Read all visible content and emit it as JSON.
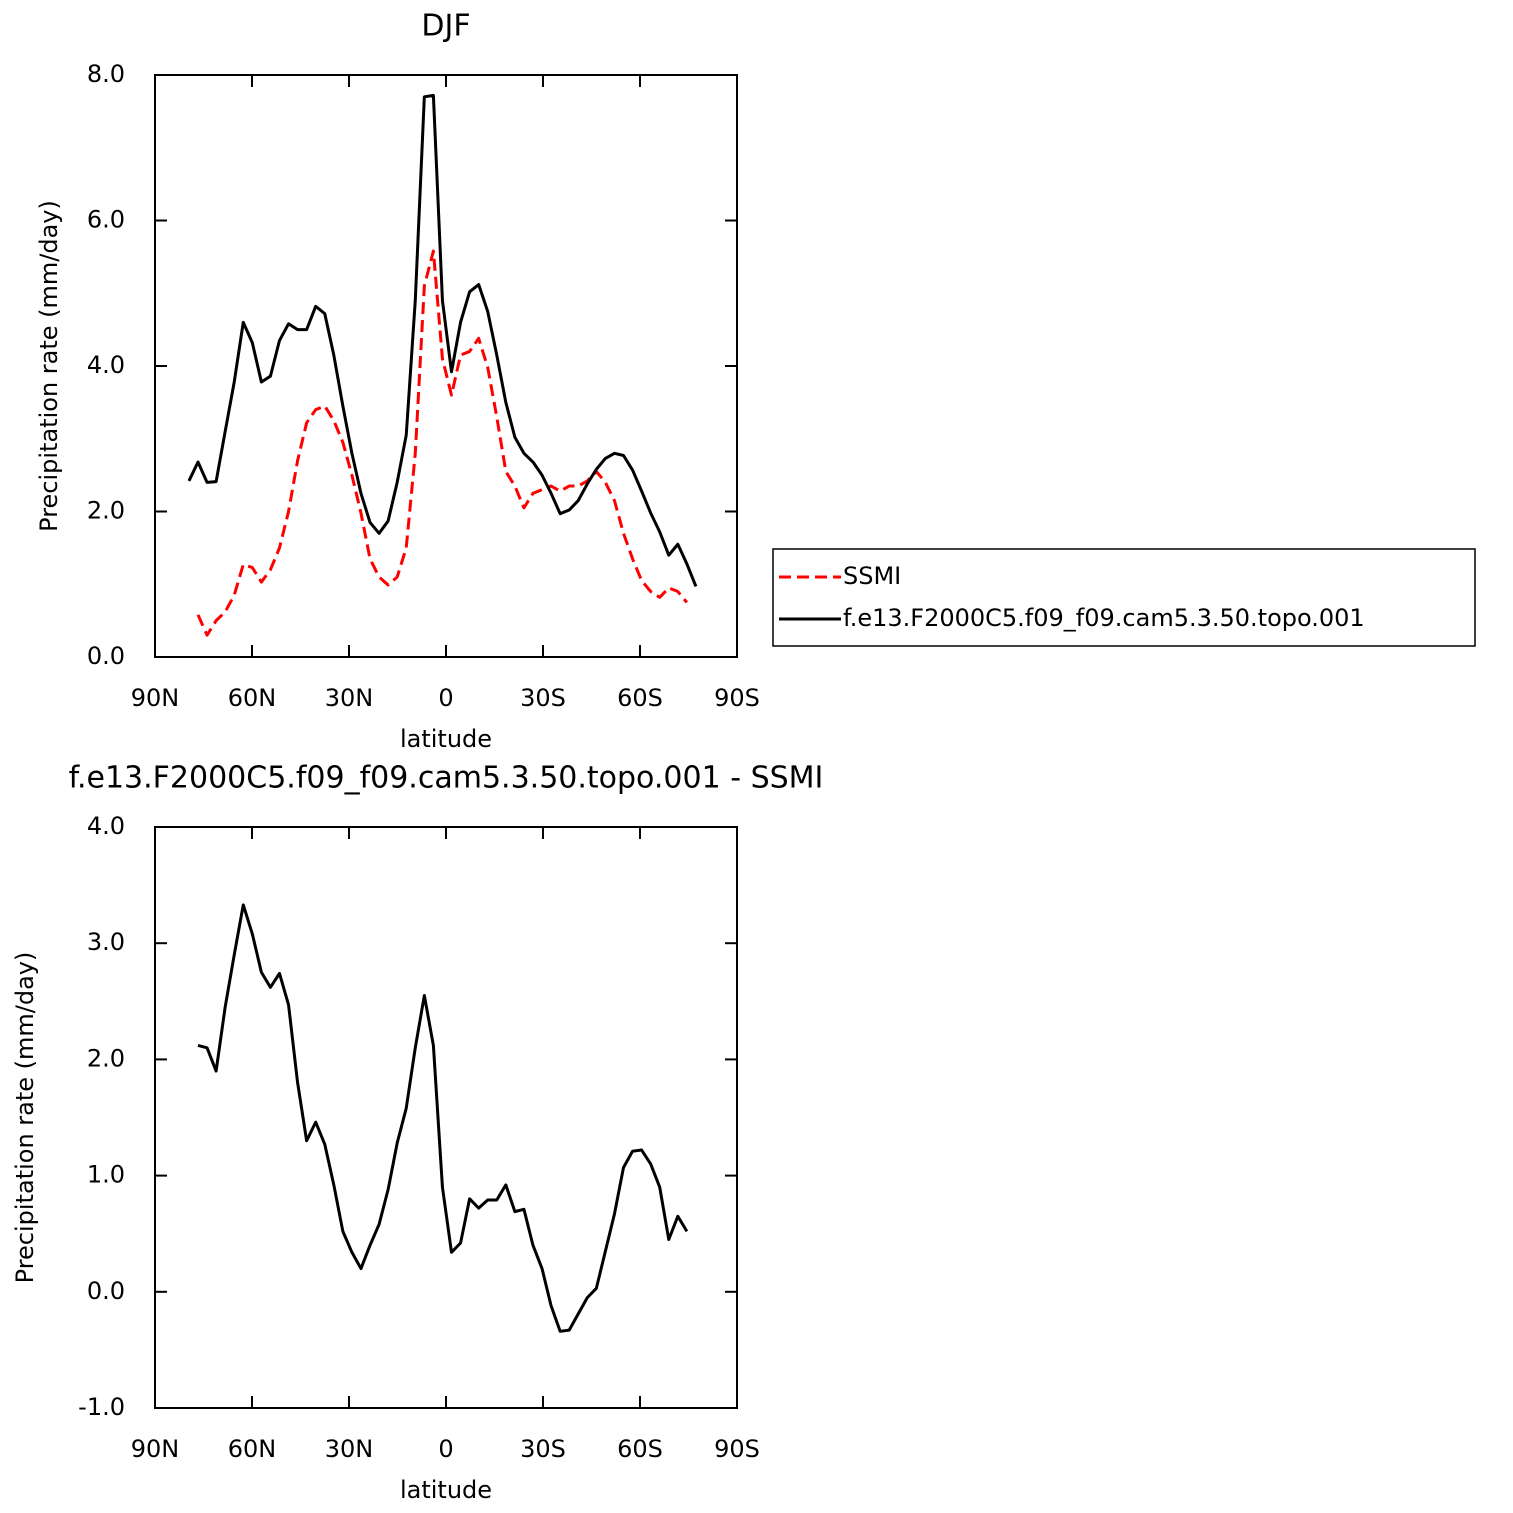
{
  "chart_data": [
    {
      "type": "line",
      "title": "DJF",
      "xlabel": "latitude",
      "ylabel": "Precipitation rate (mm/day)",
      "x": [
        79.5,
        76.7,
        73.9,
        71.1,
        68.3,
        65.5,
        62.7,
        59.9,
        57.1,
        54.3,
        51.5,
        48.7,
        45.9,
        43.1,
        40.3,
        37.5,
        34.7,
        31.9,
        29.1,
        26.3,
        23.5,
        20.7,
        17.9,
        15.1,
        12.3,
        9.5,
        6.7,
        3.9,
        1.1,
        -1.7,
        -4.5,
        -7.3,
        -10.1,
        -12.9,
        -15.7,
        -18.5,
        -21.3,
        -24.1,
        -26.9,
        -29.7,
        -32.5,
        -35.3,
        -38.1,
        -40.9,
        -43.7,
        -46.5,
        -49.3,
        -52.1,
        -54.9,
        -57.7,
        -60.5,
        -63.3,
        -66.1,
        -68.9,
        -71.7,
        -74.5,
        -77.3
      ],
      "series": [
        {
          "name": "SSMI",
          "color": "#ff0000",
          "dashed": true,
          "values": [
            null,
            0.58,
            0.3,
            0.5,
            0.62,
            0.85,
            1.27,
            1.23,
            1.03,
            1.2,
            1.5,
            2.0,
            2.7,
            3.22,
            3.4,
            3.45,
            3.25,
            2.95,
            2.5,
            1.98,
            1.35,
            1.1,
            0.99,
            1.1,
            1.5,
            2.8,
            5.1,
            5.58,
            4.1,
            3.6,
            4.15,
            4.2,
            4.38,
            3.98,
            3.3,
            2.55,
            2.35,
            2.05,
            2.25,
            2.3,
            2.35,
            2.28,
            2.35,
            2.35,
            2.42,
            2.55,
            2.4,
            2.15,
            1.7,
            1.35,
            1.05,
            0.9,
            0.82,
            0.95,
            0.9,
            0.75,
            null
          ]
        },
        {
          "name": "f.e13.F2000C5.f09_f09.cam5.3.50.topo.001",
          "color": "#000000",
          "dashed": false,
          "values": [
            2.42,
            2.68,
            2.4,
            2.41,
            3.1,
            3.78,
            4.6,
            4.32,
            3.78,
            3.86,
            4.35,
            4.58,
            4.5,
            4.5,
            4.82,
            4.72,
            4.15,
            3.45,
            2.8,
            2.25,
            1.85,
            1.7,
            1.87,
            2.4,
            3.05,
            4.9,
            7.7,
            7.72,
            4.9,
            3.92,
            4.6,
            5.02,
            5.12,
            4.75,
            4.15,
            3.5,
            3.02,
            2.8,
            2.68,
            2.5,
            2.25,
            1.97,
            2.02,
            2.15,
            2.38,
            2.58,
            2.73,
            2.8,
            2.77,
            2.57,
            2.28,
            1.98,
            1.72,
            1.4,
            1.55,
            1.28,
            0.97
          ]
        }
      ],
      "xlim": [
        90,
        -90
      ],
      "ylim": [
        0,
        8
      ],
      "xticks": [
        {
          "value": 90,
          "label": "90N"
        },
        {
          "value": 60,
          "label": "60N"
        },
        {
          "value": 30,
          "label": "30N"
        },
        0,
        {
          "value": -30,
          "label": "30S"
        },
        {
          "value": -60,
          "label": "60S"
        },
        {
          "value": -90,
          "label": "90S"
        }
      ],
      "yticks": [
        {
          "value": 0,
          "label": "0.0"
        },
        {
          "value": 2,
          "label": "2.0"
        },
        {
          "value": 4,
          "label": "4.0"
        },
        {
          "value": 6,
          "label": "6.0"
        },
        {
          "value": 8,
          "label": "8.0"
        }
      ],
      "legend": "right"
    },
    {
      "type": "line",
      "title": "f.e13.F2000C5.f09_f09.cam5.3.50.topo.001 - SSMI",
      "xlabel": "latitude",
      "ylabel": "Precipitation rate (mm/day)",
      "x": [
        79.5,
        76.7,
        73.9,
        71.1,
        68.3,
        65.5,
        62.7,
        59.9,
        57.1,
        54.3,
        51.5,
        48.7,
        45.9,
        43.1,
        40.3,
        37.5,
        34.7,
        31.9,
        29.1,
        26.3,
        23.5,
        20.7,
        17.9,
        15.1,
        12.3,
        9.5,
        6.7,
        3.9,
        1.1,
        -1.7,
        -4.5,
        -7.3,
        -10.1,
        -12.9,
        -15.7,
        -18.5,
        -21.3,
        -24.1,
        -26.9,
        -29.7,
        -32.5,
        -35.3,
        -38.1,
        -40.9,
        -43.7,
        -46.5,
        -49.3,
        -52.1,
        -54.9,
        -57.7,
        -60.5,
        -63.3,
        -66.1,
        -68.9,
        -71.7,
        -74.5,
        -77.3
      ],
      "series": [
        {
          "color": "#000000",
          "dashed": false,
          "values": [
            null,
            2.12,
            2.1,
            1.9,
            2.45,
            2.9,
            3.33,
            3.08,
            2.75,
            2.62,
            2.74,
            2.47,
            1.8,
            1.3,
            1.46,
            1.27,
            0.92,
            0.52,
            0.34,
            0.2,
            0.4,
            0.58,
            0.88,
            1.28,
            1.58,
            2.1,
            2.55,
            2.12,
            0.9,
            0.34,
            0.42,
            0.8,
            0.72,
            0.79,
            0.79,
            0.92,
            0.69,
            0.71,
            0.4,
            0.2,
            -0.12,
            -0.34,
            -0.33,
            -0.19,
            -0.05,
            0.03,
            0.35,
            0.67,
            1.07,
            1.21,
            1.22,
            1.1,
            0.9,
            0.45,
            0.65,
            0.52,
            null
          ]
        }
      ],
      "xlim": [
        90,
        -90
      ],
      "ylim": [
        -1,
        4
      ],
      "xticks": [
        {
          "value": 90,
          "label": "90N"
        },
        {
          "value": 60,
          "label": "60N"
        },
        {
          "value": 30,
          "label": "30N"
        },
        0,
        {
          "value": -30,
          "label": "30S"
        },
        {
          "value": -60,
          "label": "60S"
        },
        {
          "value": -90,
          "label": "90S"
        }
      ],
      "yticks": [
        {
          "value": -1,
          "label": "-1.0"
        },
        {
          "value": 0,
          "label": "0.0"
        },
        {
          "value": 1,
          "label": "1.0"
        },
        {
          "value": 2,
          "label": "2.0"
        },
        {
          "value": 3,
          "label": "3.0"
        },
        {
          "value": 4,
          "label": "4.0"
        }
      ]
    }
  ]
}
